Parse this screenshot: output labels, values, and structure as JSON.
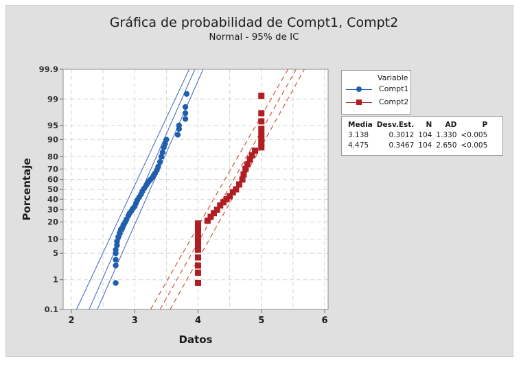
{
  "chart_data": {
    "type": "scatter",
    "title": "Gráfica de probabilidad de Compt1, Compt2",
    "subtitle": "Normal - 95% de IC",
    "xlabel": "Datos",
    "ylabel": "Porcentaje",
    "xlim": [
      1.9,
      6.05
    ],
    "x_ticks": [
      2,
      3,
      4,
      5,
      6
    ],
    "y_scale": "normal-probability",
    "y_ticks": [
      0.1,
      1,
      5,
      10,
      20,
      30,
      40,
      50,
      60,
      70,
      80,
      90,
      95,
      99,
      99.9
    ],
    "y_tick_labels": [
      "0.1",
      "1",
      "5",
      "10",
      "20",
      "30",
      "40",
      "50",
      "60",
      "70",
      "80",
      "90",
      "95",
      "99",
      "99.9"
    ],
    "grid": true,
    "legend_position": "right",
    "legend_title": "Variable",
    "series": [
      {
        "name": "Compt1",
        "color": "#1f5fad",
        "marker": "circle",
        "line_style": "solid",
        "mean": 3.138,
        "stdev": 0.3012,
        "n": 104,
        "ad": 1.33,
        "p": "<0.005",
        "fit_line": [
          [
            2.28,
            0.1
          ],
          [
            3.95,
            99.9
          ]
        ],
        "ci_lower": [
          [
            2.08,
            0.1
          ],
          [
            3.86,
            99.9
          ]
        ],
        "ci_upper": [
          [
            2.41,
            0.1
          ],
          [
            4.08,
            99.9
          ]
        ],
        "points": [
          [
            2.7,
            0.8
          ],
          [
            2.7,
            2.5
          ],
          [
            2.7,
            3.5
          ],
          [
            2.7,
            5
          ],
          [
            2.7,
            6
          ],
          [
            2.72,
            7.5
          ],
          [
            2.72,
            9
          ],
          [
            2.74,
            11
          ],
          [
            2.76,
            13
          ],
          [
            2.78,
            15
          ],
          [
            2.8,
            16
          ],
          [
            2.82,
            18
          ],
          [
            2.85,
            20
          ],
          [
            2.87,
            22
          ],
          [
            2.9,
            25
          ],
          [
            2.92,
            27
          ],
          [
            2.95,
            29
          ],
          [
            2.97,
            31
          ],
          [
            3.0,
            33
          ],
          [
            3.02,
            36
          ],
          [
            3.04,
            39
          ],
          [
            3.07,
            42
          ],
          [
            3.1,
            45
          ],
          [
            3.12,
            48
          ],
          [
            3.15,
            51
          ],
          [
            3.18,
            54
          ],
          [
            3.2,
            56
          ],
          [
            3.22,
            58
          ],
          [
            3.25,
            60
          ],
          [
            3.28,
            62
          ],
          [
            3.3,
            64
          ],
          [
            3.32,
            66
          ],
          [
            3.35,
            69
          ],
          [
            3.37,
            72
          ],
          [
            3.4,
            76
          ],
          [
            3.42,
            80
          ],
          [
            3.44,
            83
          ],
          [
            3.46,
            86
          ],
          [
            3.48,
            88
          ],
          [
            3.5,
            90
          ],
          [
            3.68,
            92
          ],
          [
            3.7,
            94
          ],
          [
            3.7,
            95
          ],
          [
            3.8,
            96.5
          ],
          [
            3.8,
            97.5
          ],
          [
            3.8,
            98.3
          ],
          [
            3.82,
            99.3
          ]
        ]
      },
      {
        "name": "Compt2",
        "color": "#b01e23",
        "marker": "square",
        "line_style": "dashed",
        "mean": 4.475,
        "stdev": 0.3467,
        "n": 104,
        "ad": 2.65,
        "p": "<0.005",
        "fit_line": [
          [
            3.4,
            0.1
          ],
          [
            5.55,
            99.9
          ]
        ],
        "ci_lower": [
          [
            3.25,
            0.1
          ],
          [
            5.42,
            99.9
          ]
        ],
        "ci_upper": [
          [
            3.56,
            0.1
          ],
          [
            5.68,
            99.9
          ]
        ],
        "points": [
          [
            4.0,
            0.8
          ],
          [
            4.0,
            1.6
          ],
          [
            4.0,
            2.5
          ],
          [
            4.0,
            4
          ],
          [
            4.0,
            6
          ],
          [
            4.0,
            8
          ],
          [
            4.0,
            10
          ],
          [
            4.0,
            13
          ],
          [
            4.0,
            16
          ],
          [
            4.0,
            19
          ],
          [
            4.15,
            21
          ],
          [
            4.2,
            24
          ],
          [
            4.25,
            27
          ],
          [
            4.3,
            30
          ],
          [
            4.35,
            34
          ],
          [
            4.4,
            37
          ],
          [
            4.45,
            40
          ],
          [
            4.5,
            43
          ],
          [
            4.55,
            47
          ],
          [
            4.6,
            50
          ],
          [
            4.65,
            55
          ],
          [
            4.7,
            60
          ],
          [
            4.72,
            65
          ],
          [
            4.75,
            70
          ],
          [
            4.78,
            74
          ],
          [
            4.82,
            78
          ],
          [
            4.85,
            81
          ],
          [
            4.9,
            84
          ],
          [
            5.0,
            86
          ],
          [
            5.0,
            88
          ],
          [
            5.0,
            90
          ],
          [
            5.0,
            92
          ],
          [
            5.0,
            94
          ],
          [
            5.0,
            96
          ],
          [
            5.0,
            97.5
          ],
          [
            5.0,
            99.2
          ]
        ]
      }
    ],
    "stats_table": {
      "columns": [
        "Media",
        "Desv.Est.",
        "N",
        "AD",
        "P"
      ],
      "rows": [
        [
          "3.138",
          "0.3012",
          "104",
          "1.330",
          "<0.005"
        ],
        [
          "4.475",
          "0.3467",
          "104",
          "2.650",
          "<0.005"
        ]
      ]
    }
  },
  "legend": {
    "title": "Variable",
    "items": [
      {
        "label": "Compt1",
        "color": "#1f5fad"
      },
      {
        "label": "Compt2",
        "color": "#b01e23"
      }
    ]
  },
  "stats": {
    "headers": [
      "Media",
      "Desv.Est.",
      "N",
      "AD",
      "P"
    ],
    "rows": [
      [
        "3.138",
        "0.3012",
        "104",
        "1.330",
        "<0.005"
      ],
      [
        "4.475",
        "0.3467",
        "104",
        "2.650",
        "<0.005"
      ]
    ]
  }
}
